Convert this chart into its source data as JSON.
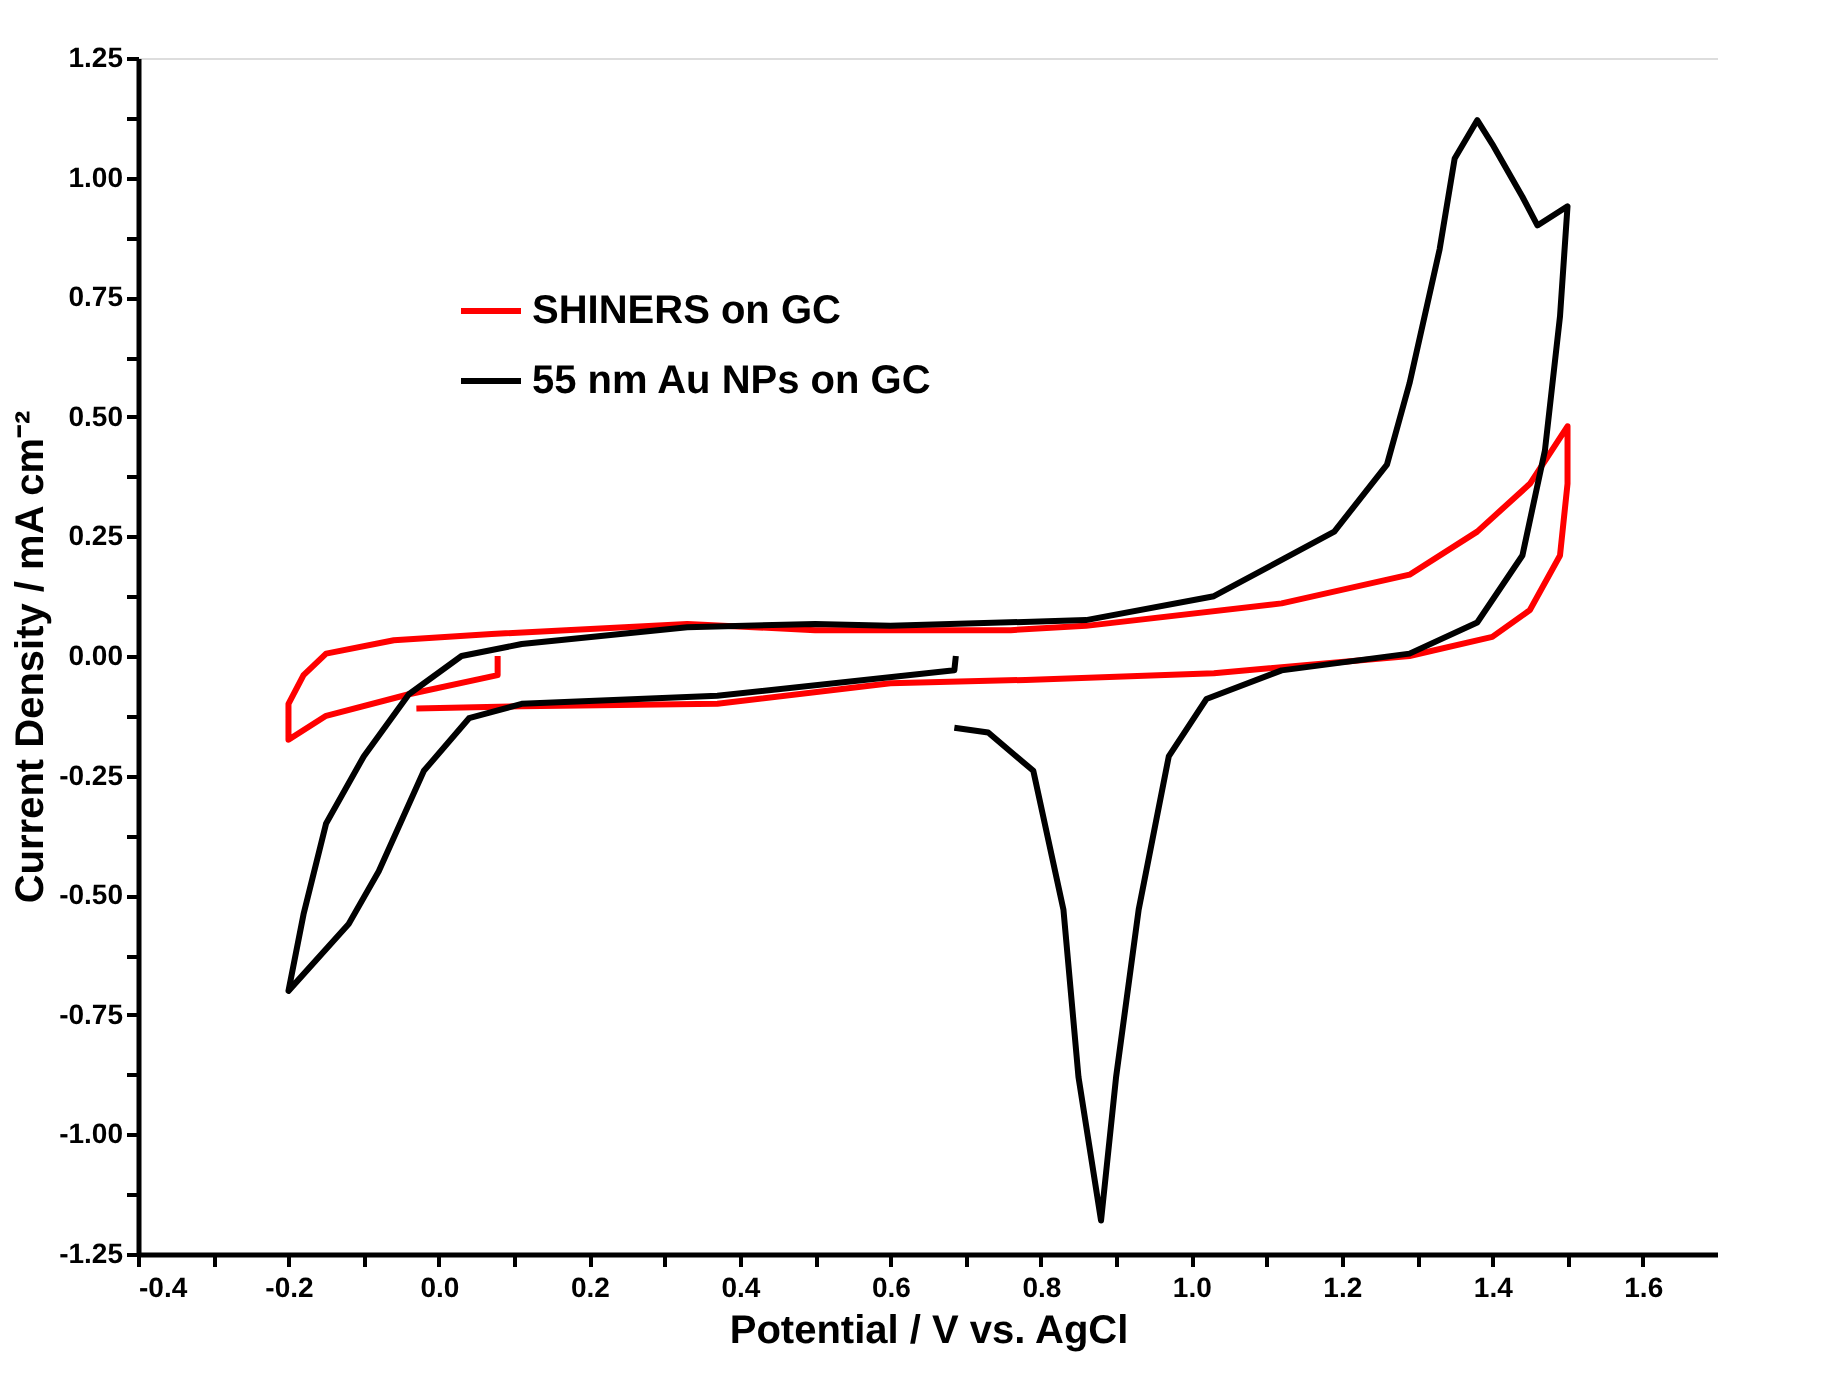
{
  "chart_data": {
    "type": "line",
    "xlabel": "Potential / V vs. AgCl",
    "ylabel": "Current Density / mA cm⁻²",
    "xlim": [
      -0.4,
      1.7
    ],
    "ylim": [
      -1.25,
      1.25
    ],
    "xticks": [
      {
        "value": -0.4,
        "label": "-0.4"
      },
      {
        "value": -0.3,
        "label": null
      },
      {
        "value": -0.2,
        "label": "-0.2"
      },
      {
        "value": -0.1,
        "label": null
      },
      {
        "value": 0,
        "label": "0.0"
      },
      {
        "value": 0.1,
        "label": null
      },
      {
        "value": 0.2,
        "label": "0.2"
      },
      {
        "value": 0.3,
        "label": null
      },
      {
        "value": 0.4,
        "label": "0.4"
      },
      {
        "value": 0.5,
        "label": null
      },
      {
        "value": 0.6,
        "label": "0.6"
      },
      {
        "value": 0.7,
        "label": null
      },
      {
        "value": 0.8,
        "label": "0.8"
      },
      {
        "value": 0.9,
        "label": null
      },
      {
        "value": 1.0,
        "label": "1.0"
      },
      {
        "value": 1.1,
        "label": null
      },
      {
        "value": 1.2,
        "label": "1.2"
      },
      {
        "value": 1.3,
        "label": null
      },
      {
        "value": 1.4,
        "label": "1.4"
      },
      {
        "value": 1.5,
        "label": null
      },
      {
        "value": 1.6,
        "label": "1.6"
      }
    ],
    "yticks": [
      {
        "value": -1.25,
        "label": "-1.25"
      },
      {
        "value": -1.125,
        "label": null
      },
      {
        "value": -1.0,
        "label": "-1.00"
      },
      {
        "value": -0.875,
        "label": null
      },
      {
        "value": -0.75,
        "label": "-0.75"
      },
      {
        "value": -0.625,
        "label": null
      },
      {
        "value": -0.5,
        "label": "-0.50"
      },
      {
        "value": -0.375,
        "label": null
      },
      {
        "value": -0.25,
        "label": "-0.25"
      },
      {
        "value": -0.125,
        "label": null
      },
      {
        "value": 0,
        "label": "0.00"
      },
      {
        "value": 0.125,
        "label": null
      },
      {
        "value": 0.25,
        "label": "0.25"
      },
      {
        "value": 0.375,
        "label": null
      },
      {
        "value": 0.5,
        "label": "0.50"
      },
      {
        "value": 0.625,
        "label": null
      },
      {
        "value": 0.75,
        "label": "0.75"
      },
      {
        "value": 0.875,
        "label": null
      },
      {
        "value": 1.0,
        "label": "1.00"
      },
      {
        "value": 1.125,
        "label": null
      },
      {
        "value": 1.25,
        "label": "1.25"
      }
    ],
    "grid": false,
    "legend": "top left",
    "marker": "none",
    "line_style": "solid",
    "series": [
      {
        "name": "SHINERS on GC",
        "color": "#ff0000",
        "x": [
          -0.03,
          0.11,
          0.37,
          0.6,
          0.78,
          1.03,
          1.29,
          1.4,
          1.45,
          1.49,
          1.5,
          1.5,
          1.45,
          1.38,
          1.29,
          1.12,
          0.86,
          0.76,
          0.5,
          0.33,
          0.07,
          -0.06,
          -0.15,
          -0.18,
          -0.2,
          -0.2,
          -0.15,
          -0.04,
          0.078,
          0.078
        ],
        "values": [
          -0.11,
          -0.105,
          -0.1,
          -0.057,
          -0.05,
          -0.036,
          0.0,
          0.04,
          0.096,
          0.21,
          0.36,
          0.48,
          0.36,
          0.26,
          0.17,
          0.11,
          0.063,
          0.054,
          0.054,
          0.067,
          0.046,
          0.033,
          0.005,
          -0.04,
          -0.1,
          -0.175,
          -0.125,
          -0.08,
          -0.04,
          0.0
        ]
      },
      {
        "name": "55 nm Au NPs on GC",
        "color": "#000000",
        "x": [
          0.687,
          0.685,
          0.37,
          0.11,
          0.04,
          -0.02,
          -0.08,
          -0.12,
          -0.2,
          -0.18,
          -0.15,
          -0.1,
          -0.04,
          0.03,
          0.11,
          0.33,
          0.5,
          0.6,
          0.86,
          1.03,
          1.19,
          1.26,
          1.29,
          1.33,
          1.35,
          1.38,
          1.4,
          1.44,
          1.46,
          1.5,
          1.49,
          1.47,
          1.44,
          1.38,
          1.29,
          1.12,
          1.02,
          0.97,
          0.93,
          0.9,
          0.88,
          0.85,
          0.83,
          0.79,
          0.73,
          0.685
        ],
        "values": [
          0.0,
          -0.03,
          -0.083,
          -0.1,
          -0.13,
          -0.24,
          -0.45,
          -0.56,
          -0.7,
          -0.54,
          -0.35,
          -0.21,
          -0.08,
          0.0,
          0.025,
          0.06,
          0.067,
          0.063,
          0.075,
          0.125,
          0.26,
          0.4,
          0.57,
          0.85,
          1.04,
          1.12,
          1.07,
          0.96,
          0.9,
          0.94,
          0.71,
          0.43,
          0.21,
          0.07,
          0.005,
          -0.03,
          -0.09,
          -0.21,
          -0.53,
          -0.88,
          -1.18,
          -0.88,
          -0.53,
          -0.24,
          -0.16,
          -0.15
        ]
      }
    ]
  }
}
